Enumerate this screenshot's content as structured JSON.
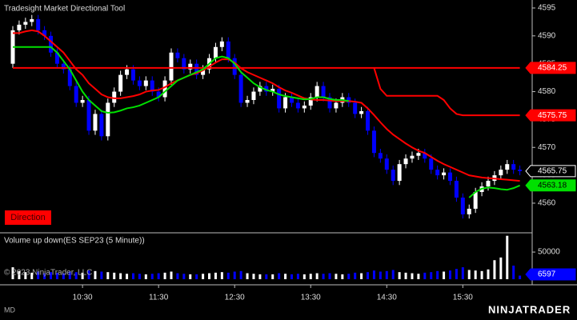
{
  "chart_data": [
    {
      "type": "candlestick",
      "title": "Tradesight Market Directional Tool",
      "categories": [
        null,
        null,
        null,
        null,
        null,
        null,
        null,
        null,
        null,
        null,
        null,
        "10:30",
        null,
        null,
        null,
        null,
        null,
        null,
        null,
        null,
        null,
        null,
        null,
        "11:30",
        null,
        null,
        null,
        null,
        null,
        null,
        null,
        null,
        null,
        null,
        null,
        "12:30",
        null,
        null,
        null,
        null,
        null,
        null,
        null,
        null,
        null,
        null,
        null,
        "13:30",
        null,
        null,
        null,
        null,
        null,
        null,
        null,
        null,
        null,
        null,
        null,
        "14:30",
        null,
        null,
        null,
        null,
        null,
        null,
        null,
        null,
        null,
        null,
        null,
        "15:30",
        null,
        null,
        null,
        null,
        null,
        null,
        null,
        null,
        null
      ],
      "open": [
        4585,
        4591,
        4592,
        4592.5,
        4593,
        4591,
        4590,
        4587,
        4585,
        4584,
        4581,
        4578,
        4578.5,
        4573,
        4576,
        4572,
        4578,
        4580,
        4583,
        4584,
        4582,
        4581,
        4582,
        4580,
        4579,
        4582,
        4587,
        4586,
        4584,
        4585,
        4583,
        4584,
        4586,
        4588,
        4589,
        4586,
        4583,
        4578,
        4578.5,
        4580,
        4581,
        4580,
        4580.5,
        4577,
        4579,
        4578,
        4577,
        4577.5,
        4579,
        4581,
        4579,
        4577,
        4578,
        4579,
        4578,
        4576,
        4576.5,
        4573,
        4569,
        4568,
        4566,
        4564,
        4567,
        4568,
        4568.5,
        4569,
        4568,
        4566,
        4565,
        4565.5,
        4564,
        4561,
        4558,
        4559,
        4562,
        4563,
        4564,
        4565,
        4566,
        4567,
        4566
      ],
      "high": [
        4591.75,
        4592.75,
        4593.25,
        4593.75,
        4593.75,
        4591.75,
        4590.75,
        4587.75,
        4585.75,
        4584.75,
        4581.75,
        4579.25,
        4579.25,
        4576.75,
        4576.75,
        4578.75,
        4580.75,
        4583.75,
        4584.75,
        4584.75,
        4582.75,
        4582.75,
        4582.75,
        4580.75,
        4582.75,
        4587.75,
        4587.75,
        4586.75,
        4585.75,
        4585.75,
        4584.75,
        4586.75,
        4588.75,
        4589.75,
        4589.75,
        4586.75,
        4583.75,
        4579.25,
        4580.75,
        4581.75,
        4581.75,
        4581.25,
        4581.25,
        4579.75,
        4579.75,
        4578.75,
        4578.25,
        4579.75,
        4581.75,
        4581.75,
        4579.75,
        4578.75,
        4579.75,
        4579.75,
        4578.75,
        4577.25,
        4577.25,
        4573.75,
        4569.75,
        4568.75,
        4566.75,
        4567.75,
        4568.75,
        4569.25,
        4569.75,
        4569.75,
        4568.75,
        4566.75,
        4566.25,
        4566.25,
        4564.75,
        4561.75,
        4559.75,
        4562.75,
        4563.75,
        4564.75,
        4565.75,
        4566.75,
        4567.75,
        4567.75,
        4566.75
      ],
      "low": [
        4584.25,
        4590.25,
        4591.25,
        4591.75,
        4590.25,
        4589.25,
        4586.25,
        4584.25,
        4583.25,
        4580.25,
        4577.25,
        4577.25,
        4572.25,
        4572.25,
        4571.25,
        4571.25,
        4577.25,
        4579.25,
        4582.25,
        4581.25,
        4580.25,
        4580.25,
        4579.25,
        4578.25,
        4578.25,
        4581.25,
        4585.25,
        4583.25,
        4583.25,
        4582.25,
        4582.25,
        4583.25,
        4585.25,
        4587.25,
        4585.25,
        4582.25,
        4577.25,
        4577.25,
        4577.75,
        4579.25,
        4579.25,
        4579.25,
        4576.25,
        4576.25,
        4577.25,
        4576.25,
        4576.25,
        4576.75,
        4578.25,
        4578.25,
        4576.25,
        4576.25,
        4577.25,
        4577.25,
        4575.25,
        4575.25,
        4572.25,
        4568.25,
        4567.25,
        4565.25,
        4563.25,
        4563.25,
        4566.25,
        4567.25,
        4567.75,
        4567.25,
        4565.25,
        4564.25,
        4564.25,
        4563.25,
        4560.25,
        4557.25,
        4557.25,
        4558.25,
        4561.25,
        4562.25,
        4563.25,
        4564.25,
        4565.25,
        4565.25,
        4565
      ],
      "close": [
        4591,
        4592,
        4592.5,
        4593,
        4591,
        4590,
        4587,
        4585,
        4584,
        4581,
        4578,
        4578.5,
        4573,
        4576,
        4572,
        4578,
        4580,
        4583,
        4584,
        4582,
        4581,
        4582,
        4580,
        4579,
        4582,
        4587,
        4586,
        4584,
        4585,
        4583,
        4584,
        4586,
        4588,
        4589,
        4586,
        4583,
        4578,
        4578.5,
        4580,
        4581,
        4580,
        4580.5,
        4577,
        4579,
        4578,
        4577,
        4577.5,
        4579,
        4581,
        4579,
        4577,
        4578,
        4579,
        4578,
        4576,
        4576.5,
        4573,
        4569,
        4568,
        4566,
        4564,
        4567,
        4568,
        4568.5,
        4569,
        4568,
        4566,
        4565,
        4565.5,
        4564,
        4561,
        4558,
        4559,
        4562,
        4563,
        4564,
        4565,
        4566,
        4567,
        4566,
        4565.75
      ],
      "up_color": "#ffffff",
      "down_color": "#0000ff",
      "ylim": [
        4554.83,
        4596.43
      ],
      "yticks": [
        4560,
        4565,
        4570,
        4575,
        4580,
        4585,
        4590,
        4595
      ],
      "series": [
        {
          "color": "#ff0000",
          "values": [
            4584.25,
            4584.25,
            4584.25,
            4584.25,
            4584.25,
            4584.25,
            4584.25,
            4584.25,
            4584.25,
            4584.25,
            4584.25,
            4584.25,
            4584.25,
            4584.25,
            4584.25,
            4584.25,
            4584.25,
            4584.25,
            4584.25,
            4584.25,
            4584.25,
            4584.25,
            4584.25,
            4584.25,
            4584.25,
            4584.25,
            4584.25,
            4584.25,
            4584.25,
            4584.25,
            4584.25,
            4584.25,
            4584.25,
            4584.25,
            4584.25,
            4584.25,
            4584.25,
            4584.25,
            4584.25,
            4584.25,
            4584.25,
            4584.25,
            4584.25,
            4584.25,
            4584.25,
            4584.25,
            4584.25,
            4584.25,
            4584.25,
            4584.25,
            4584.25,
            4584.25,
            4584.25,
            4584.25,
            4584.25,
            4584.25,
            4584.25,
            4584.25,
            4584.25,
            4584.25,
            4584.25,
            4584.25,
            4584.25,
            4584.25,
            4584.25,
            4584.25,
            4584.25,
            4584.25,
            4584.25,
            4584.25,
            4584.25,
            4584.25,
            4584.25,
            4584.25,
            4584.25,
            4584.25,
            4584.25,
            4584.25,
            4584.25,
            4584.25,
            4584.25
          ]
        },
        {
          "color": "#ff0000",
          "values": [
            null,
            null,
            null,
            null,
            null,
            null,
            null,
            null,
            null,
            null,
            null,
            null,
            null,
            null,
            null,
            null,
            null,
            null,
            null,
            null,
            null,
            null,
            null,
            null,
            null,
            null,
            null,
            null,
            null,
            null,
            null,
            null,
            null,
            null,
            null,
            null,
            null,
            null,
            null,
            null,
            null,
            null,
            null,
            null,
            null,
            null,
            null,
            null,
            null,
            null,
            null,
            null,
            null,
            null,
            null,
            null,
            null,
            4584.25,
            4580.5,
            4579.25,
            4579.25,
            4579.25,
            4579.25,
            4579.25,
            4579.25,
            4579.25,
            4579.25,
            4579.25,
            4578.5,
            4577,
            4576,
            4575.75,
            4575.75,
            4575.75,
            4575.75,
            4575.75,
            4575.75,
            4575.75,
            4575.75,
            4575.75,
            4575.75
          ]
        },
        {
          "color": "#ff0000",
          "values": [
            4590.5,
            4590.5,
            4590.8,
            4591,
            4590.8,
            4590,
            4589,
            4588,
            4587,
            4585.5,
            4584,
            4583,
            4581.5,
            4580.5,
            4579.5,
            4579,
            4578.8,
            4578.8,
            4579,
            4579.2,
            4579.5,
            4580,
            4580.2,
            4580.3,
            4580.8,
            4581.5,
            4582,
            4582.5,
            4583,
            4583.3,
            4583.8,
            4584.5,
            4585.2,
            4585.8,
            4585.8,
            4585.2,
            4584.2,
            4583.5,
            4583,
            4582.5,
            4582,
            4581.5,
            4580.8,
            4580.2,
            4579.8,
            4579.3,
            4578.8,
            4578.6,
            4578.5,
            4578.5,
            4578.4,
            4578.3,
            4578.3,
            4578.3,
            4578.2,
            4578,
            4577,
            4575.8,
            4574.5,
            4573.3,
            4572.3,
            4571.5,
            4570.7,
            4570,
            4569.4,
            4569,
            4568.3,
            4567.6,
            4567,
            4566.5,
            4566,
            4565.5,
            4565,
            4564.8,
            4564.6,
            4564.5,
            4564.4,
            4564.3,
            4564.2,
            4564.1,
            4564
          ]
        },
        {
          "color": "#00e000",
          "values": [
            4588,
            4588,
            4588,
            4588,
            4588,
            4588,
            4588,
            4587,
            4585.5,
            4584,
            4582,
            4580,
            4578.5,
            4577.5,
            4576.5,
            4576.2,
            4576.3,
            4576.6,
            4577,
            4577.2,
            4577.5,
            4578,
            4578.5,
            4579,
            4580,
            4581,
            4582,
            4582.5,
            4583,
            4583.5,
            4584,
            4585,
            4586,
            4586.3,
            4586,
            4585,
            4583.5,
            4582.5,
            4581.5,
            4580.8,
            4580.3,
            4580,
            4579.5,
            4579.2,
            4579,
            4578.8,
            4578.6,
            4578.7,
            4579,
            4579,
            4578.7,
            4578.5,
            4578.5,
            4578.3,
            null,
            null,
            null,
            null,
            null,
            null,
            null,
            null,
            null,
            null,
            null,
            null,
            null,
            null,
            null,
            null,
            null,
            null,
            4561,
            4562,
            4562.6,
            4562.8,
            4562.7,
            4562.5,
            4562.4,
            4562.7,
            4563.18
          ]
        }
      ]
    },
    {
      "type": "bar",
      "title": "Volume up down(ES SEP23 (5 Minute))",
      "values": [
        22000,
        15000,
        13000,
        12000,
        14000,
        11000,
        13000,
        12000,
        11000,
        14000,
        13000,
        12000,
        16000,
        15000,
        14000,
        13000,
        12000,
        11000,
        10000,
        11000,
        10000,
        9000,
        10000,
        11000,
        12000,
        14000,
        11000,
        10000,
        9000,
        9000,
        10000,
        11000,
        12000,
        13000,
        12000,
        14000,
        15000,
        11000,
        10000,
        9000,
        9000,
        9000,
        11000,
        10000,
        9000,
        10000,
        9000,
        10000,
        11000,
        10000,
        11000,
        10000,
        9000,
        10000,
        12000,
        11000,
        13000,
        16000,
        14000,
        15000,
        17000,
        13000,
        12000,
        11000,
        10000,
        12000,
        13000,
        15000,
        14000,
        16000,
        19000,
        22000,
        17000,
        16000,
        15000,
        18000,
        35000,
        40000,
        80000,
        25000,
        6597
      ],
      "ylim": [
        0,
        84000
      ],
      "yticks": [
        50000
      ]
    }
  ],
  "ui": {
    "direction": "Direction",
    "copyright": "© 2023 NinjaTrader, LLC",
    "status": "MD",
    "brand": "NINJATRADER"
  }
}
